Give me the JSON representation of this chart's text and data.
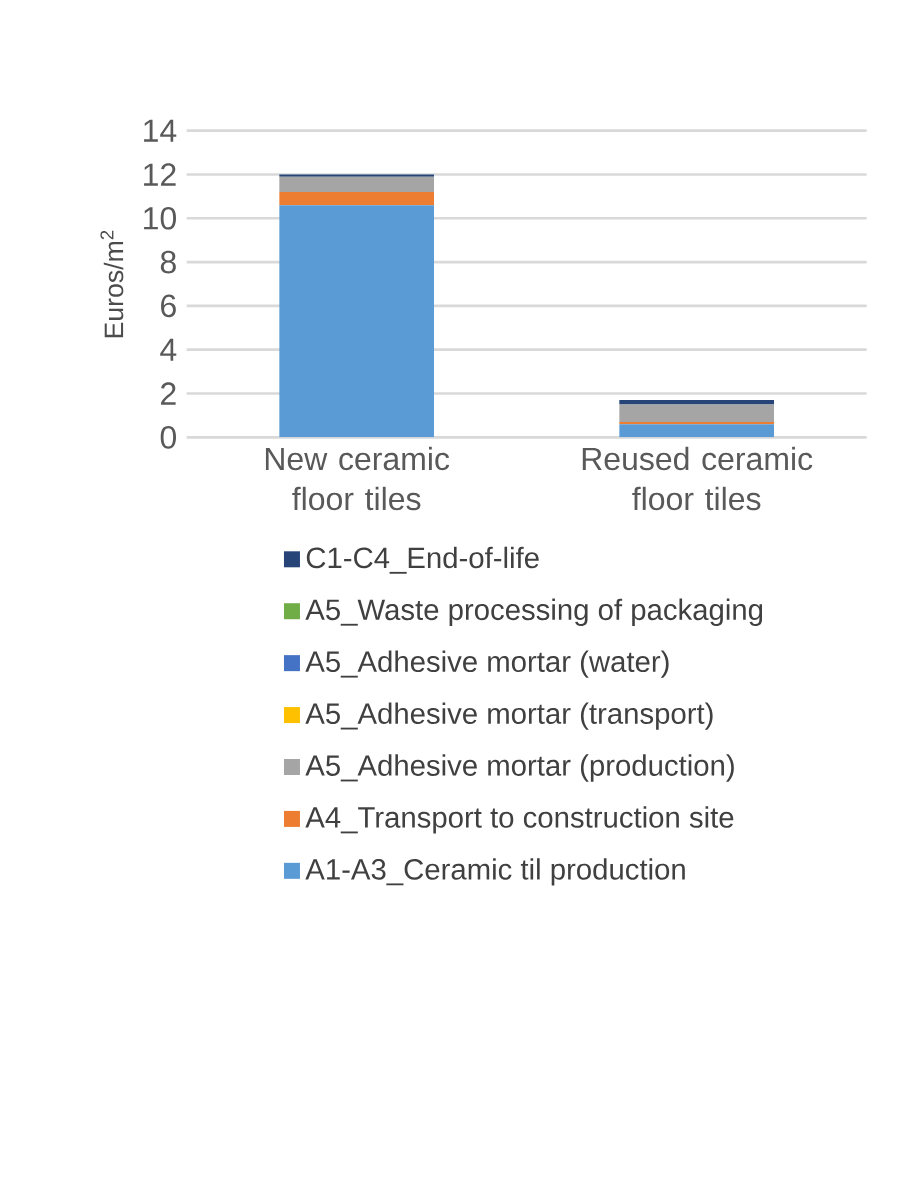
{
  "chart_data": {
    "type": "bar",
    "stacked": true,
    "ylabel": "Euros/m$^{2}$",
    "categories": [
      "New ceramic floor tiles",
      "Reused ceramic floor tiles"
    ],
    "series": [
      {
        "name": "A1-A3_Ceramic til production",
        "color": "#5b9bd5",
        "values": [
          10.6,
          0.6
        ]
      },
      {
        "name": "A4_Transport to construction site",
        "color": "#ed7d31",
        "values": [
          0.6,
          0.1
        ]
      },
      {
        "name": "A5_Adhesive mortar (production)",
        "color": "#a5a5a5",
        "values": [
          0.7,
          0.8
        ]
      },
      {
        "name": "A5_Adhesive mortar (transport)",
        "color": "#ffc000",
        "values": [
          null,
          null
        ]
      },
      {
        "name": "A5_Adhesive mortar (water)",
        "color": "#4472c4",
        "values": [
          null,
          null
        ]
      },
      {
        "name": "A5_Waste processing of packaging",
        "color": "#70ad47",
        "values": [
          null,
          null
        ]
      },
      {
        "name": "C1-C4_End-of-life",
        "color": "#264478",
        "values": [
          0.1,
          0.2
        ]
      }
    ],
    "ylim": [
      0,
      14
    ],
    "yticks": [
      0,
      2,
      4,
      6,
      8,
      10,
      12,
      14
    ],
    "grid": "y",
    "legend": "bottom"
  }
}
